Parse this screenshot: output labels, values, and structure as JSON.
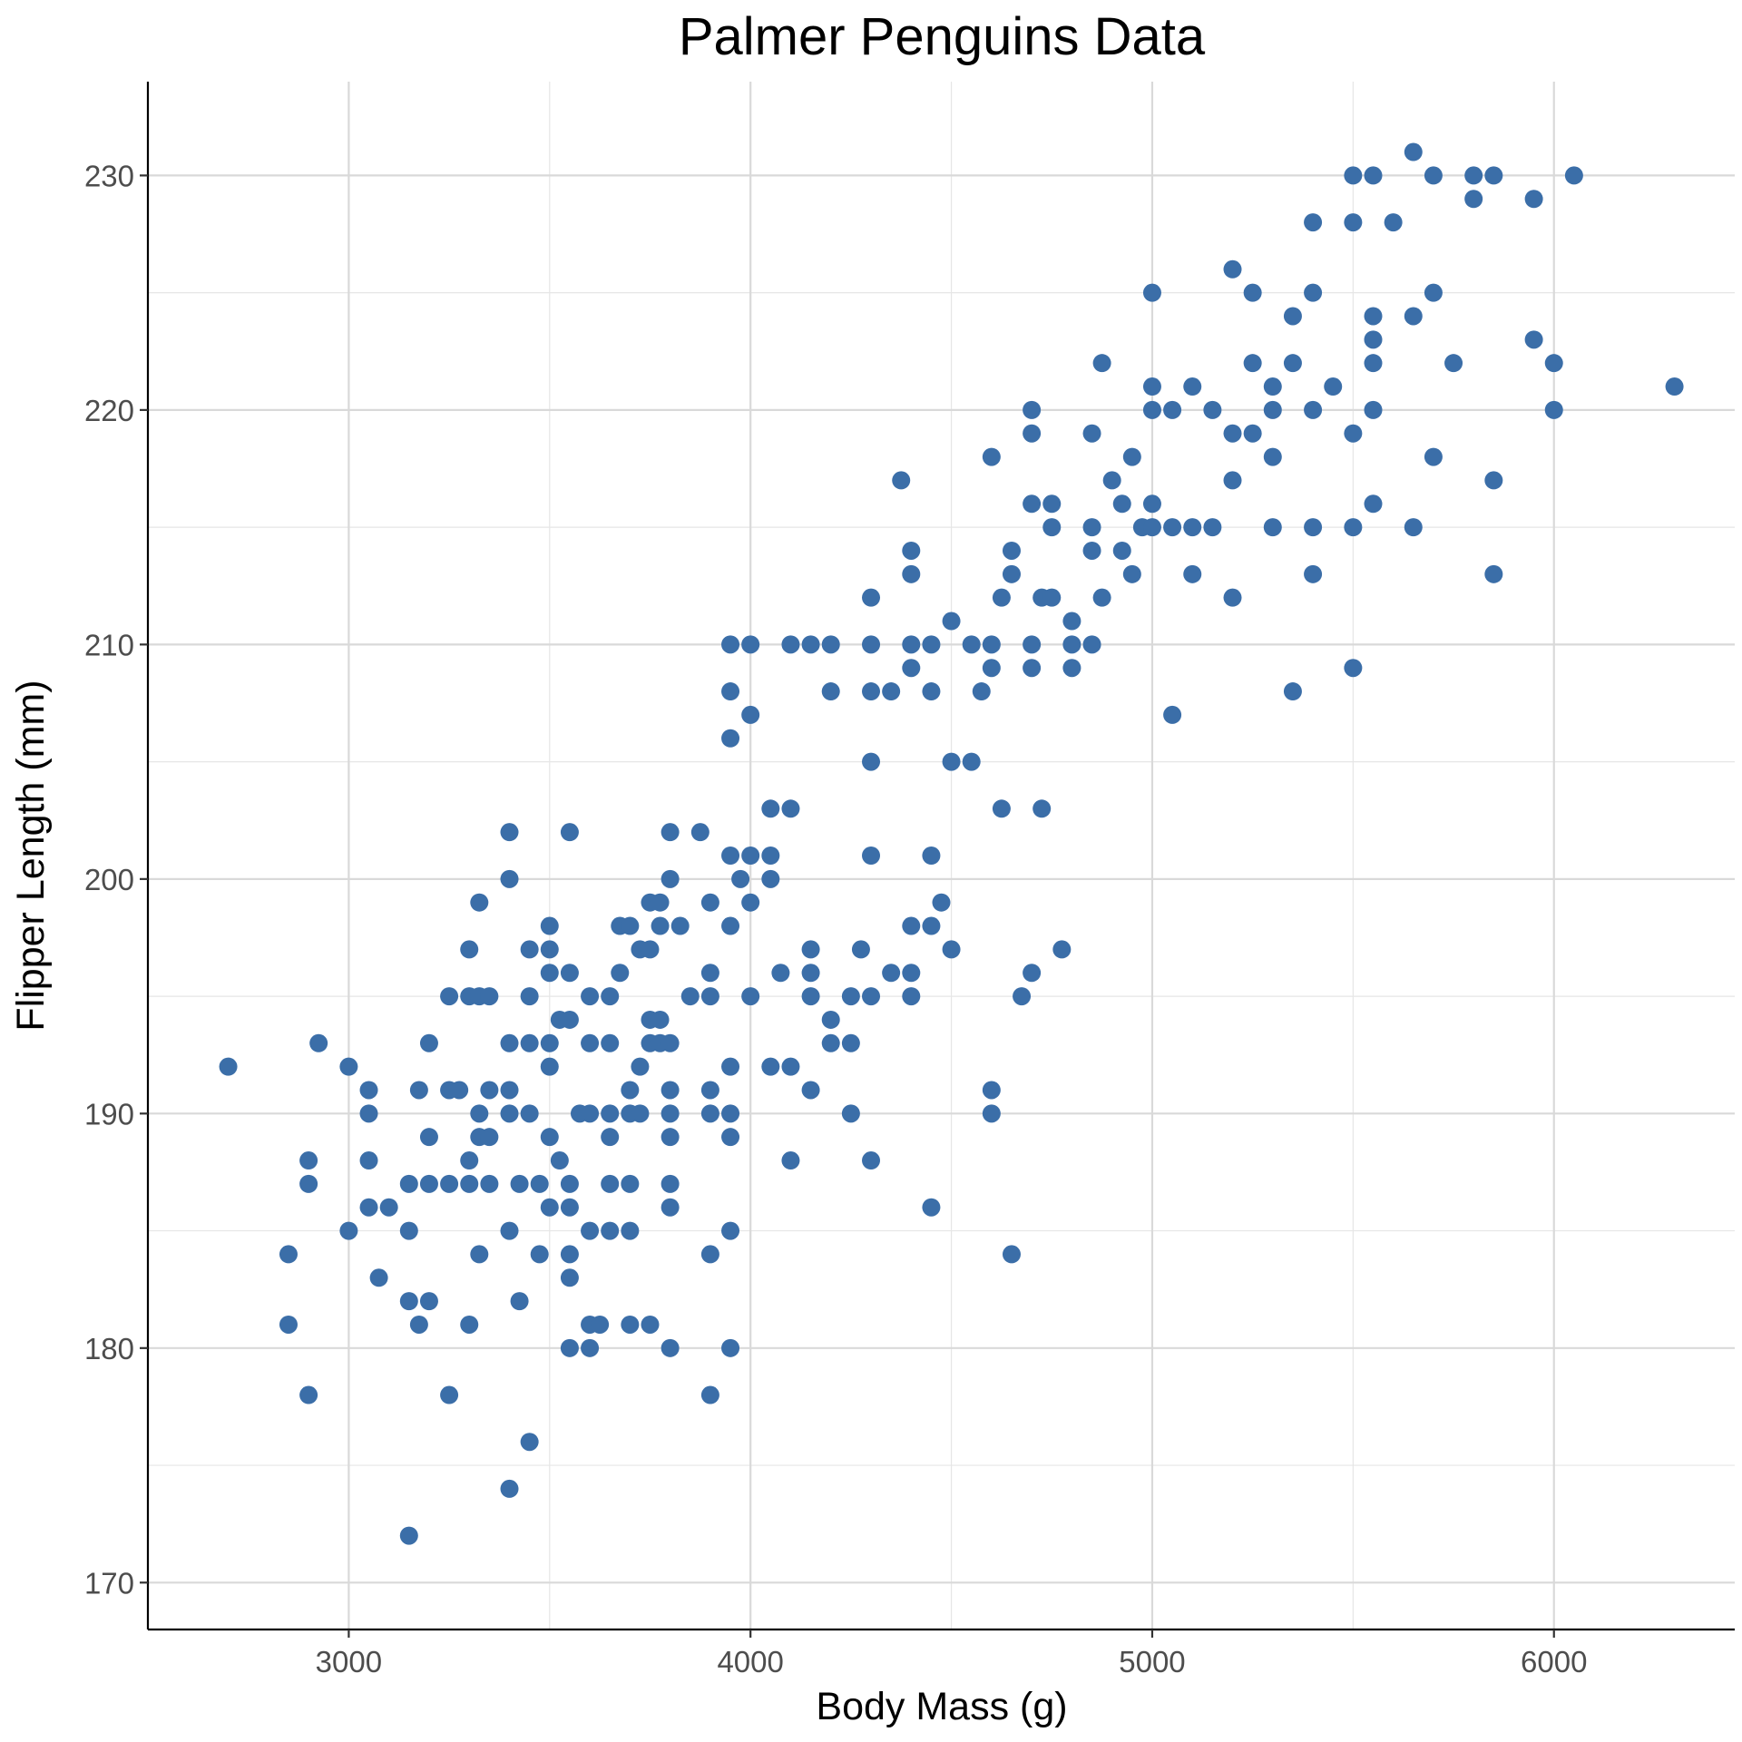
{
  "chart_data": {
    "type": "scatter",
    "title": "Palmer Penguins Data",
    "xlabel": "Body Mass (g)",
    "ylabel": "Flipper Length (mm)",
    "xlim": [
      2500,
      6450
    ],
    "ylim": [
      168,
      234
    ],
    "xticks": [
      3000,
      4000,
      5000,
      6000
    ],
    "yticks": [
      170,
      180,
      190,
      200,
      210,
      220,
      230
    ],
    "grid": true,
    "legend": "none",
    "point_color": "#3b6ea8",
    "points": [
      [
        2700,
        192
      ],
      [
        2850,
        184
      ],
      [
        2850,
        181
      ],
      [
        2900,
        188
      ],
      [
        2900,
        187
      ],
      [
        2900,
        178
      ],
      [
        2925,
        193
      ],
      [
        3000,
        192
      ],
      [
        3000,
        185
      ],
      [
        3050,
        191
      ],
      [
        3050,
        190
      ],
      [
        3050,
        188
      ],
      [
        3050,
        186
      ],
      [
        3075,
        183
      ],
      [
        3100,
        186
      ],
      [
        3150,
        187
      ],
      [
        3150,
        185
      ],
      [
        3150,
        182
      ],
      [
        3150,
        172
      ],
      [
        3175,
        191
      ],
      [
        3175,
        181
      ],
      [
        3200,
        193
      ],
      [
        3200,
        189
      ],
      [
        3200,
        187
      ],
      [
        3200,
        182
      ],
      [
        3250,
        195
      ],
      [
        3250,
        191
      ],
      [
        3250,
        187
      ],
      [
        3250,
        178
      ],
      [
        3275,
        191
      ],
      [
        3300,
        197
      ],
      [
        3300,
        195
      ],
      [
        3300,
        188
      ],
      [
        3300,
        187
      ],
      [
        3300,
        181
      ],
      [
        3325,
        199
      ],
      [
        3325,
        195
      ],
      [
        3325,
        190
      ],
      [
        3325,
        189
      ],
      [
        3325,
        184
      ],
      [
        3350,
        195
      ],
      [
        3350,
        191
      ],
      [
        3350,
        189
      ],
      [
        3350,
        187
      ],
      [
        3400,
        202
      ],
      [
        3400,
        200
      ],
      [
        3400,
        193
      ],
      [
        3400,
        191
      ],
      [
        3400,
        190
      ],
      [
        3400,
        185
      ],
      [
        3400,
        174
      ],
      [
        3425,
        187
      ],
      [
        3425,
        182
      ],
      [
        3450,
        197
      ],
      [
        3450,
        195
      ],
      [
        3450,
        193
      ],
      [
        3450,
        190
      ],
      [
        3450,
        176
      ],
      [
        3475,
        187
      ],
      [
        3475,
        184
      ],
      [
        3500,
        198
      ],
      [
        3500,
        197
      ],
      [
        3500,
        196
      ],
      [
        3500,
        193
      ],
      [
        3500,
        192
      ],
      [
        3500,
        189
      ],
      [
        3500,
        186
      ],
      [
        3525,
        194
      ],
      [
        3525,
        188
      ],
      [
        3550,
        202
      ],
      [
        3550,
        196
      ],
      [
        3550,
        194
      ],
      [
        3550,
        187
      ],
      [
        3550,
        186
      ],
      [
        3550,
        184
      ],
      [
        3550,
        183
      ],
      [
        3550,
        180
      ],
      [
        3575,
        190
      ],
      [
        3600,
        195
      ],
      [
        3600,
        193
      ],
      [
        3600,
        190
      ],
      [
        3600,
        185
      ],
      [
        3600,
        181
      ],
      [
        3600,
        180
      ],
      [
        3625,
        181
      ],
      [
        3650,
        195
      ],
      [
        3650,
        193
      ],
      [
        3650,
        190
      ],
      [
        3650,
        189
      ],
      [
        3650,
        187
      ],
      [
        3650,
        185
      ],
      [
        3675,
        198
      ],
      [
        3675,
        196
      ],
      [
        3700,
        198
      ],
      [
        3700,
        191
      ],
      [
        3700,
        190
      ],
      [
        3700,
        187
      ],
      [
        3700,
        185
      ],
      [
        3700,
        181
      ],
      [
        3725,
        197
      ],
      [
        3725,
        192
      ],
      [
        3725,
        190
      ],
      [
        3750,
        199
      ],
      [
        3750,
        197
      ],
      [
        3750,
        194
      ],
      [
        3750,
        193
      ],
      [
        3750,
        181
      ],
      [
        3775,
        199
      ],
      [
        3775,
        198
      ],
      [
        3775,
        194
      ],
      [
        3775,
        193
      ],
      [
        3800,
        202
      ],
      [
        3800,
        200
      ],
      [
        3800,
        193
      ],
      [
        3800,
        191
      ],
      [
        3800,
        190
      ],
      [
        3800,
        189
      ],
      [
        3800,
        187
      ],
      [
        3800,
        186
      ],
      [
        3800,
        180
      ],
      [
        3825,
        198
      ],
      [
        3850,
        195
      ],
      [
        3875,
        202
      ],
      [
        3900,
        199
      ],
      [
        3900,
        196
      ],
      [
        3900,
        195
      ],
      [
        3900,
        191
      ],
      [
        3900,
        190
      ],
      [
        3900,
        184
      ],
      [
        3900,
        178
      ],
      [
        3950,
        210
      ],
      [
        3950,
        208
      ],
      [
        3950,
        206
      ],
      [
        3950,
        201
      ],
      [
        3950,
        198
      ],
      [
        3950,
        192
      ],
      [
        3950,
        190
      ],
      [
        3950,
        189
      ],
      [
        3950,
        185
      ],
      [
        3950,
        180
      ],
      [
        3975,
        200
      ],
      [
        4000,
        210
      ],
      [
        4000,
        207
      ],
      [
        4000,
        201
      ],
      [
        4000,
        199
      ],
      [
        4000,
        195
      ],
      [
        4050,
        203
      ],
      [
        4050,
        201
      ],
      [
        4050,
        200
      ],
      [
        4050,
        192
      ],
      [
        4075,
        196
      ],
      [
        4100,
        210
      ],
      [
        4100,
        203
      ],
      [
        4100,
        192
      ],
      [
        4100,
        188
      ],
      [
        4150,
        210
      ],
      [
        4150,
        197
      ],
      [
        4150,
        196
      ],
      [
        4150,
        195
      ],
      [
        4150,
        191
      ],
      [
        4200,
        210
      ],
      [
        4200,
        208
      ],
      [
        4200,
        194
      ],
      [
        4200,
        193
      ],
      [
        4250,
        195
      ],
      [
        4250,
        193
      ],
      [
        4250,
        190
      ],
      [
        4275,
        197
      ],
      [
        4300,
        212
      ],
      [
        4300,
        210
      ],
      [
        4300,
        208
      ],
      [
        4300,
        205
      ],
      [
        4300,
        201
      ],
      [
        4300,
        195
      ],
      [
        4300,
        188
      ],
      [
        4350,
        208
      ],
      [
        4350,
        196
      ],
      [
        4375,
        217
      ],
      [
        4400,
        214
      ],
      [
        4400,
        213
      ],
      [
        4400,
        210
      ],
      [
        4400,
        209
      ],
      [
        4400,
        198
      ],
      [
        4400,
        196
      ],
      [
        4400,
        195
      ],
      [
        4450,
        210
      ],
      [
        4450,
        208
      ],
      [
        4450,
        201
      ],
      [
        4450,
        198
      ],
      [
        4450,
        186
      ],
      [
        4475,
        199
      ],
      [
        4500,
        211
      ],
      [
        4500,
        205
      ],
      [
        4500,
        197
      ],
      [
        4550,
        210
      ],
      [
        4550,
        205
      ],
      [
        4575,
        208
      ],
      [
        4600,
        218
      ],
      [
        4600,
        210
      ],
      [
        4600,
        209
      ],
      [
        4600,
        191
      ],
      [
        4600,
        190
      ],
      [
        4625,
        212
      ],
      [
        4625,
        203
      ],
      [
        4650,
        214
      ],
      [
        4650,
        213
      ],
      [
        4650,
        184
      ],
      [
        4675,
        195
      ],
      [
        4700,
        220
      ],
      [
        4700,
        219
      ],
      [
        4700,
        216
      ],
      [
        4700,
        210
      ],
      [
        4700,
        209
      ],
      [
        4700,
        196
      ],
      [
        4725,
        212
      ],
      [
        4725,
        203
      ],
      [
        4750,
        216
      ],
      [
        4750,
        215
      ],
      [
        4750,
        212
      ],
      [
        4775,
        197
      ],
      [
        4800,
        211
      ],
      [
        4800,
        210
      ],
      [
        4800,
        209
      ],
      [
        4850,
        219
      ],
      [
        4850,
        215
      ],
      [
        4850,
        214
      ],
      [
        4850,
        210
      ],
      [
        4875,
        222
      ],
      [
        4875,
        212
      ],
      [
        4900,
        217
      ],
      [
        4925,
        216
      ],
      [
        4925,
        214
      ],
      [
        4950,
        218
      ],
      [
        4950,
        213
      ],
      [
        4975,
        215
      ],
      [
        5000,
        225
      ],
      [
        5000,
        221
      ],
      [
        5000,
        220
      ],
      [
        5000,
        216
      ],
      [
        5000,
        215
      ],
      [
        5050,
        220
      ],
      [
        5050,
        215
      ],
      [
        5050,
        207
      ],
      [
        5100,
        221
      ],
      [
        5100,
        215
      ],
      [
        5100,
        213
      ],
      [
        5150,
        220
      ],
      [
        5150,
        215
      ],
      [
        5200,
        226
      ],
      [
        5200,
        219
      ],
      [
        5200,
        217
      ],
      [
        5200,
        212
      ],
      [
        5250,
        225
      ],
      [
        5250,
        222
      ],
      [
        5250,
        219
      ],
      [
        5300,
        221
      ],
      [
        5300,
        220
      ],
      [
        5300,
        218
      ],
      [
        5300,
        215
      ],
      [
        5350,
        224
      ],
      [
        5350,
        222
      ],
      [
        5350,
        208
      ],
      [
        5400,
        228
      ],
      [
        5400,
        225
      ],
      [
        5400,
        220
      ],
      [
        5400,
        215
      ],
      [
        5400,
        213
      ],
      [
        5450,
        221
      ],
      [
        5500,
        230
      ],
      [
        5500,
        228
      ],
      [
        5500,
        219
      ],
      [
        5500,
        215
      ],
      [
        5500,
        209
      ],
      [
        5550,
        230
      ],
      [
        5550,
        224
      ],
      [
        5550,
        223
      ],
      [
        5550,
        222
      ],
      [
        5550,
        220
      ],
      [
        5550,
        216
      ],
      [
        5600,
        228
      ],
      [
        5650,
        231
      ],
      [
        5650,
        224
      ],
      [
        5650,
        215
      ],
      [
        5700,
        230
      ],
      [
        5700,
        225
      ],
      [
        5700,
        218
      ],
      [
        5750,
        222
      ],
      [
        5800,
        230
      ],
      [
        5800,
        229
      ],
      [
        5850,
        230
      ],
      [
        5850,
        217
      ],
      [
        5850,
        213
      ],
      [
        5950,
        229
      ],
      [
        5950,
        223
      ],
      [
        6000,
        222
      ],
      [
        6000,
        220
      ],
      [
        6050,
        230
      ],
      [
        6300,
        221
      ]
    ]
  }
}
